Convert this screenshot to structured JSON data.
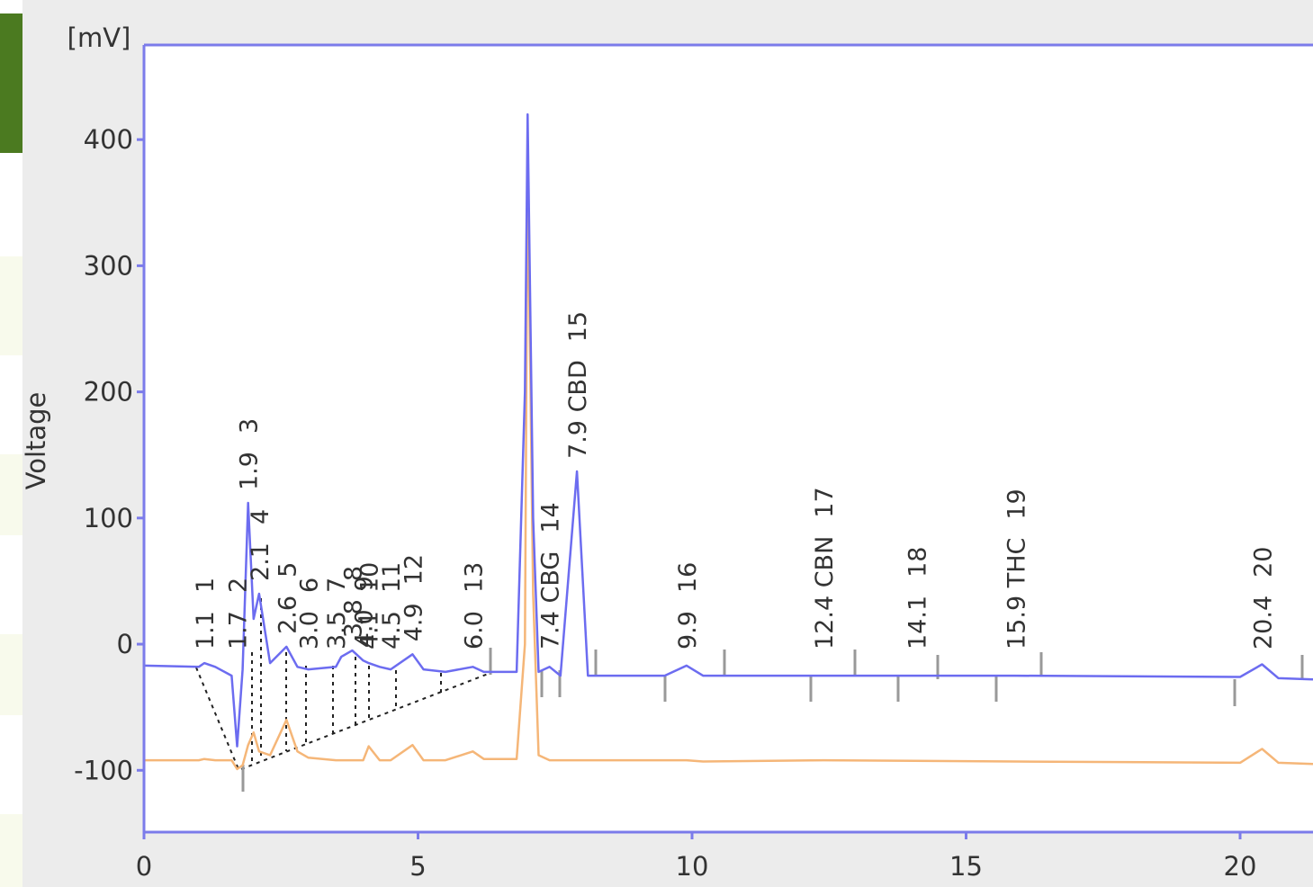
{
  "chart_data": {
    "type": "line",
    "y_unit": "[mV]",
    "y_label": "Voltage",
    "xlim": [
      0,
      21.33
    ],
    "ylim": [
      -149,
      475
    ],
    "xticks": [
      0,
      5,
      10,
      15,
      20
    ],
    "yticks": [
      -100,
      0,
      100,
      200,
      300,
      400
    ],
    "x": [
      0,
      1.0,
      1.1,
      1.3,
      1.6,
      1.7,
      1.8,
      1.9,
      2.0,
      2.1,
      2.3,
      2.6,
      2.8,
      3.0,
      3.5,
      3.6,
      3.8,
      4.0,
      4.1,
      4.3,
      4.5,
      4.9,
      5.1,
      5.5,
      6.0,
      6.2,
      6.8,
      6.95,
      7.0,
      7.1,
      7.2,
      7.4,
      7.6,
      7.9,
      8.1,
      9.5,
      9.9,
      10.2,
      12.4,
      15.9,
      20.0,
      20.4,
      20.7,
      21.33
    ],
    "series": [
      {
        "color": "#f5b678",
        "values": [
          -92,
          -92,
          -91,
          -92,
          -92,
          -99,
          -96,
          -80,
          -70,
          -85,
          -88,
          -60,
          -85,
          -90,
          -92,
          -92,
          -92,
          -92,
          -81,
          -92,
          -92,
          -80,
          -92,
          -92,
          -85,
          -91,
          -91,
          0,
          380,
          40,
          -88,
          -92,
          -92,
          -92,
          -92,
          -92,
          -92,
          -93,
          -92,
          -93,
          -94,
          -83,
          -94,
          -95
        ]
      },
      {
        "color": "#6c6cf0",
        "values": [
          -17,
          -18,
          -15,
          -18,
          -25,
          -81,
          -20,
          112,
          20,
          40,
          -15,
          -2,
          -18,
          -20,
          -18,
          -10,
          -5,
          -13,
          -15,
          -18,
          -20,
          -8,
          -20,
          -22,
          -18,
          -22,
          -22,
          200,
          420,
          100,
          -22,
          -18,
          -25,
          137,
          -25,
          -25,
          -17,
          -25,
          -25,
          -25,
          -26,
          -16,
          -27,
          -28
        ]
      }
    ],
    "peaks": [
      {
        "x": 1.1,
        "label": "1.1",
        "number": "1"
      },
      {
        "x": 1.7,
        "label": "1.7",
        "number": "2"
      },
      {
        "x": 1.9,
        "label": "1.9",
        "number": "3"
      },
      {
        "x": 2.1,
        "label": "2.1",
        "number": "4"
      },
      {
        "x": 2.6,
        "label": "2.6",
        "number": "5"
      },
      {
        "x": 3.0,
        "label": "3.0",
        "number": "6"
      },
      {
        "x": 3.5,
        "label": "3.5",
        "number": "7"
      },
      {
        "x": 3.8,
        "label": "3.8",
        "number": "8"
      },
      {
        "x": 4.0,
        "label": "4.0",
        "number": "9"
      },
      {
        "x": 4.1,
        "label": "4.1",
        "number": "10"
      },
      {
        "x": 4.5,
        "label": "4.5",
        "number": "11"
      },
      {
        "x": 4.9,
        "label": "4.9",
        "number": "12"
      },
      {
        "x": 6.0,
        "label": "6.0",
        "number": "13"
      },
      {
        "x": 7.4,
        "label": "7.4 CBG",
        "number": "14"
      },
      {
        "x": 7.9,
        "label": "7.9 CBD",
        "number": "15",
        "fill": "#3fd83f"
      },
      {
        "x": 9.9,
        "label": "9.9",
        "number": "16"
      },
      {
        "x": 12.4,
        "label": "12.4 CBN",
        "number": "17"
      },
      {
        "x": 14.1,
        "label": "14.1",
        "number": "18"
      },
      {
        "x": 15.9,
        "label": "15.9 THC",
        "number": "19"
      },
      {
        "x": 20.4,
        "label": "20.4",
        "number": "20"
      }
    ]
  }
}
